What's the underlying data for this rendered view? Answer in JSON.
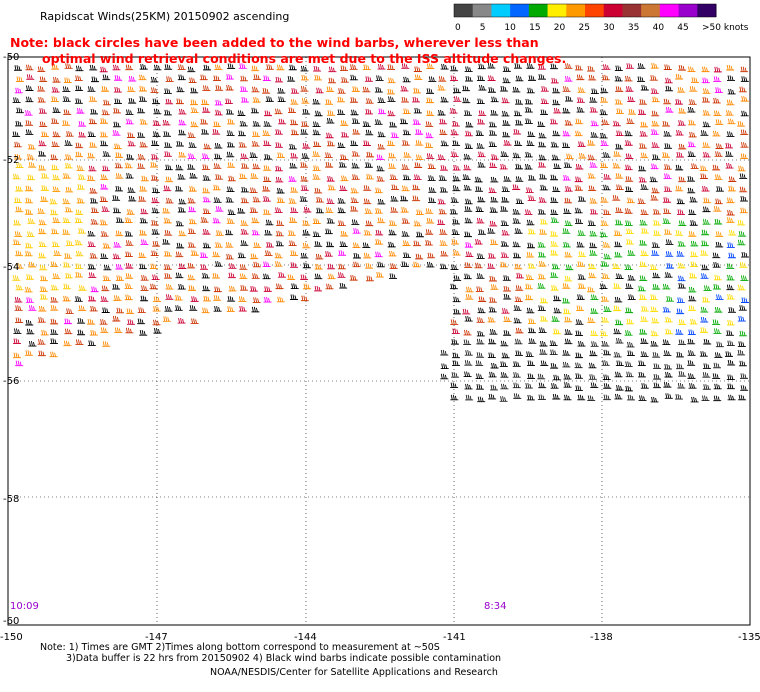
{
  "title": "Rapidscat Winds(25KM) 20150902 ascending",
  "note": {
    "line1": "Note: black circles have been added to the wind barbs, wherever less than",
    "line2": "optimal wind retrieval conditions are met due to the ISS altitude changes.",
    "color": "#ff0000"
  },
  "legend": {
    "labels": [
      "0",
      "5",
      "10",
      "15",
      "20",
      "25",
      "30",
      "35",
      "40",
      "45",
      ">50 knots"
    ],
    "colors": [
      "#444444",
      "#888888",
      "#00ccff",
      "#0066ff",
      "#00aa00",
      "#ffee00",
      "#ff9900",
      "#ff4400",
      "#cc0033",
      "#993333",
      "#cc7733",
      "#ff00ff",
      "#9900cc",
      "#330066"
    ]
  },
  "map": {
    "lon_ticks": [
      "-150",
      "-147",
      "-144",
      "-141",
      "-138",
      "-135"
    ],
    "lat_ticks": [
      "-50",
      "-52",
      "-54",
      "-56",
      "-58",
      "-60"
    ],
    "time_labels": [
      {
        "text": "10:09",
        "color": "#9900cc"
      },
      {
        "text": "8:34",
        "color": "#9900cc"
      }
    ]
  },
  "footer": {
    "line1": "Note: 1) Times are GMT 2)Times along bottom correspond to measurement at ~50S",
    "line2": "3)Data buffer is 22 hrs from 20150902 4) Black wind barbs indicate possible contamination",
    "line3": "NOAA/NESDIS/Center for Satellite Applications and Research"
  }
}
